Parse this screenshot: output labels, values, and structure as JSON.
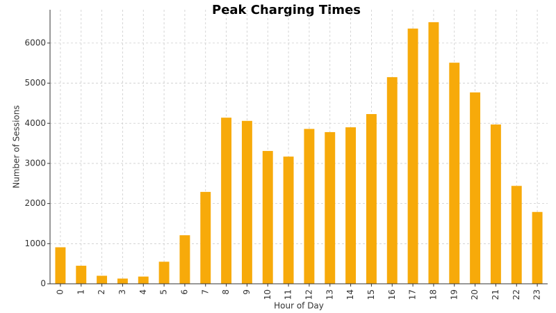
{
  "chart_data": {
    "type": "bar",
    "title": "Peak Charging Times",
    "x_label": "Hour of Day",
    "y_label": "Number of Sessions",
    "categories": [
      "0",
      "1",
      "2",
      "3",
      "4",
      "5",
      "6",
      "7",
      "8",
      "9",
      "10",
      "11",
      "12",
      "13",
      "14",
      "15",
      "16",
      "17",
      "18",
      "19",
      "20",
      "21",
      "22",
      "23"
    ],
    "values": [
      910,
      450,
      200,
      130,
      180,
      550,
      1210,
      2290,
      4140,
      4060,
      3310,
      3170,
      3860,
      3780,
      3900,
      4230,
      5150,
      6360,
      6520,
      5510,
      4770,
      3970,
      2440,
      1790
    ],
    "color": "#f7aa0a",
    "ylim": [
      0,
      6830
    ],
    "yticks": [
      0,
      1000,
      2000,
      3000,
      4000,
      5000,
      6000
    ],
    "grid": true
  }
}
